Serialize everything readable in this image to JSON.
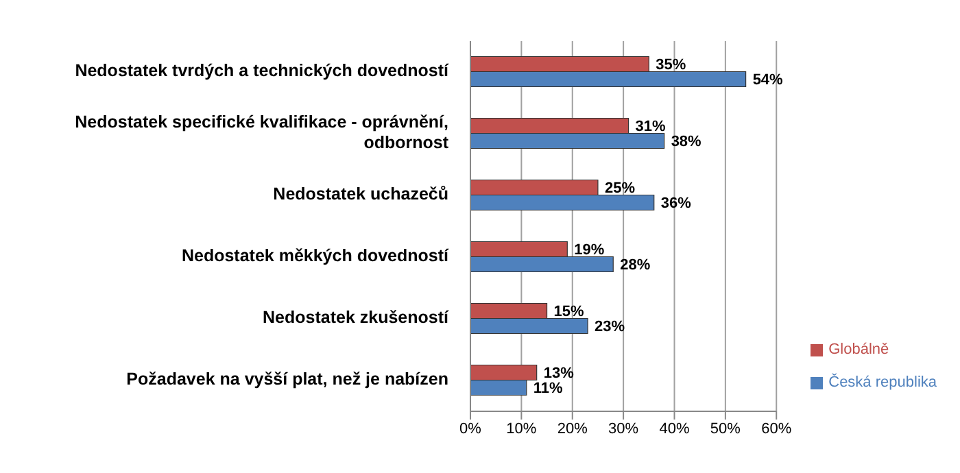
{
  "chart_data": {
    "type": "bar",
    "orientation": "horizontal",
    "categories": [
      "Nedostatek tvrdých a technických dovedností",
      "Nedostatek specifické kvalifikace - oprávnění, odbornost",
      "Nedostatek uchazečů",
      "Nedostatek měkkých dovedností",
      "Nedostatek zkušeností",
      "Požadavek na vyšší plat, než je nabízen"
    ],
    "series": [
      {
        "name": "Globálně",
        "color": "#c0504d",
        "values": [
          35,
          31,
          25,
          19,
          15,
          13
        ],
        "value_labels": [
          "35%",
          "31%",
          "25%",
          "19%",
          "15%",
          "13%"
        ]
      },
      {
        "name": "Česká republika",
        "color": "#4f81bd",
        "values": [
          54,
          38,
          36,
          28,
          23,
          11
        ],
        "value_labels": [
          "54%",
          "38%",
          "36%",
          "28%",
          "23%",
          "11%"
        ]
      }
    ],
    "xlim": [
      0,
      60
    ],
    "xticks": [
      {
        "value": 0,
        "label": "0%"
      },
      {
        "value": 10,
        "label": "10%"
      },
      {
        "value": 20,
        "label": "20%"
      },
      {
        "value": 30,
        "label": "30%"
      },
      {
        "value": 40,
        "label": "40%"
      },
      {
        "value": 50,
        "label": "50%"
      },
      {
        "value": 60,
        "label": "60%"
      }
    ],
    "grid": "x",
    "legend": "right"
  }
}
